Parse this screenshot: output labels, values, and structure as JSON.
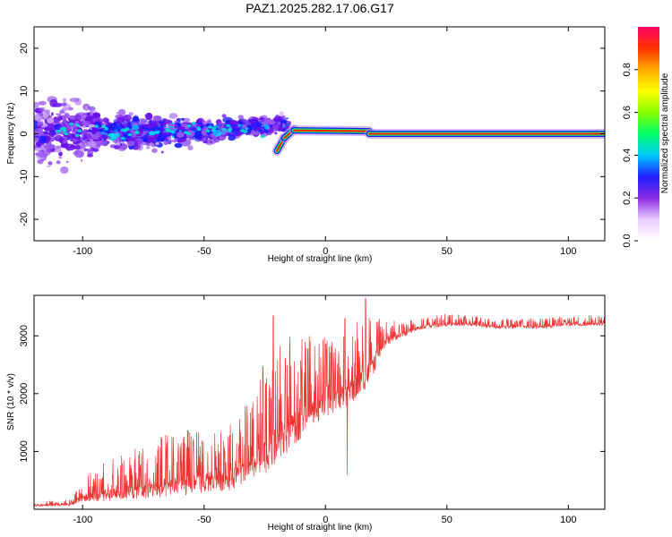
{
  "title": "PAZ1.2025.282.17.06.G17",
  "chart_data": [
    {
      "type": "heatmap",
      "name": "spectrogram",
      "xlabel": "Height of straight line (km)",
      "ylabel": "Frequency (Hz)",
      "xlim": [
        -120,
        115
      ],
      "ylim": [
        -25,
        25
      ],
      "xticks": [
        -100,
        -50,
        0,
        50,
        100
      ],
      "yticks": [
        -20,
        -10,
        0,
        10,
        20
      ],
      "tone_segments": [
        {
          "x0": -20,
          "x1": -17,
          "y0": -4,
          "y1": -1
        },
        {
          "x0": -17,
          "x1": -13,
          "y0": -1,
          "y1": 1
        },
        {
          "x0": -13,
          "x1": 18,
          "y0": 0.8,
          "y1": 0.6
        },
        {
          "x0": 18,
          "x1": 115,
          "y0": 0,
          "y1": 0
        }
      ],
      "colorbar": {
        "label": "Normalized spectral amplitude",
        "range": [
          0.0,
          1.0
        ],
        "ticks": [
          0.0,
          0.2,
          0.4,
          0.6,
          0.8
        ]
      }
    },
    {
      "type": "line",
      "name": "snr",
      "xlabel": "Height of straight line (km)",
      "ylabel": "SNR (10 * v/v)",
      "xlim": [
        -120,
        115
      ],
      "ylim": [
        0,
        3700
      ],
      "xticks": [
        -100,
        -50,
        0,
        50,
        100
      ],
      "yticks": [
        1000,
        2000,
        3000
      ],
      "color": "#ee3333",
      "envelope_x": [
        -120,
        -105,
        -100,
        -90,
        -80,
        -70,
        -60,
        -50,
        -40,
        -30,
        -25,
        -20,
        -15,
        -10,
        -5,
        0,
        5,
        10,
        15,
        20,
        25,
        30,
        40,
        50,
        60,
        70,
        80,
        90,
        100,
        115
      ],
      "envelope_base": [
        60,
        80,
        200,
        250,
        300,
        350,
        400,
        450,
        500,
        700,
        900,
        1100,
        1300,
        1500,
        1700,
        1800,
        1900,
        2000,
        2200,
        2500,
        2900,
        3000,
        3150,
        3200,
        3200,
        3150,
        3150,
        3150,
        3200,
        3200
      ],
      "envelope_spike": [
        60,
        100,
        350,
        600,
        700,
        900,
        1000,
        900,
        1000,
        1200,
        1700,
        1900,
        1700,
        1500,
        1300,
        1200,
        1100,
        1200,
        1300,
        800,
        400,
        250,
        180,
        180,
        150,
        150,
        150,
        150,
        150,
        150
      ],
      "spikes": [
        {
          "x": -21.5,
          "y": 3350
        },
        {
          "x": -10,
          "y": 2400
        },
        {
          "x": 9,
          "y": 600
        },
        {
          "x": 8,
          "y": 3300
        },
        {
          "x": 16.5,
          "y": 3650
        }
      ]
    }
  ]
}
